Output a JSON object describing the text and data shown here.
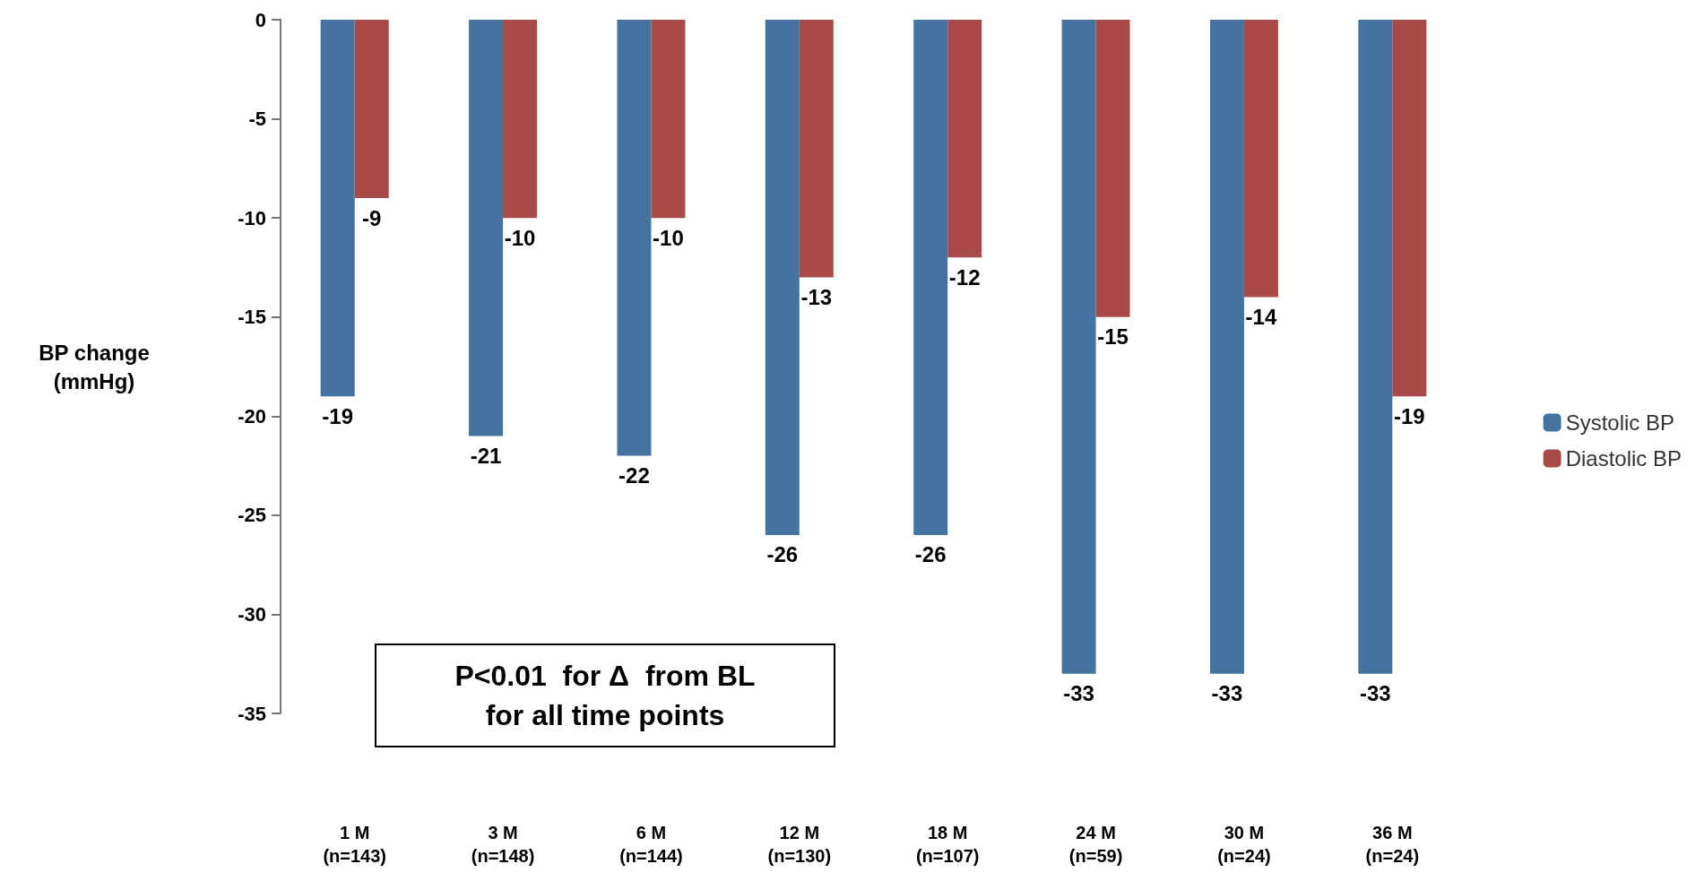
{
  "chart_data": {
    "type": "bar",
    "ylabel": "BP change\n(mmHg)",
    "categories": [
      "1 M\n(n=143)",
      "3 M\n(n=148)",
      "6 M\n(n=144)",
      "12 M\n(n=130)",
      "18 M\n(n=107)",
      "24 M\n(n=59)",
      "30 M\n(n=24)",
      "36 M\n(n=24)"
    ],
    "series": [
      {
        "name": "Systolic BP",
        "color": "#44739f",
        "values": [
          -19,
          -21,
          -22,
          -26,
          -26,
          -33,
          -33,
          -33
        ]
      },
      {
        "name": "Diastolic BP",
        "color": "#a84a48",
        "values": [
          -9,
          -10,
          -10,
          -13,
          -12,
          -15,
          -14,
          -19
        ]
      }
    ],
    "ylim": [
      -35,
      0
    ],
    "yticks": [
      -35,
      -30,
      -25,
      -20,
      -15,
      -10,
      -5,
      0
    ],
    "data_labels": true,
    "legend": "right",
    "grid": false,
    "annotations": [
      "P<0.01  for Δ  from BL\nfor all time points"
    ]
  }
}
